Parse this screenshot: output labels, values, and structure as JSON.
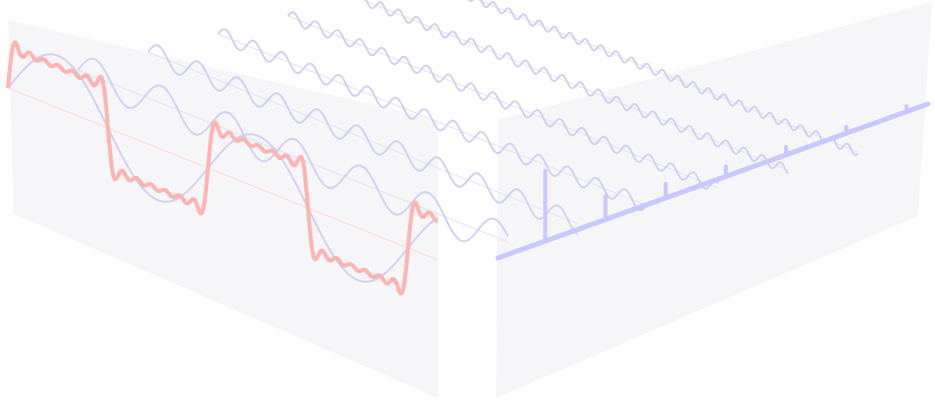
{
  "diagram": {
    "subject": "fourier-series-square-wave",
    "harmonics": [
      1,
      3,
      5,
      7,
      9,
      11,
      13
    ],
    "amplitudes": [
      1,
      0.3333,
      0.2,
      0.1429,
      0.1111,
      0.0909,
      0.0769
    ],
    "colors": {
      "square_wave": "#ffb3b3",
      "harmonic_wave": "#c9c9ee",
      "spectrum": "#c8c8ff",
      "time_plane": "#f4f4f6",
      "frequency_plane": "#f4f4f6"
    }
  }
}
